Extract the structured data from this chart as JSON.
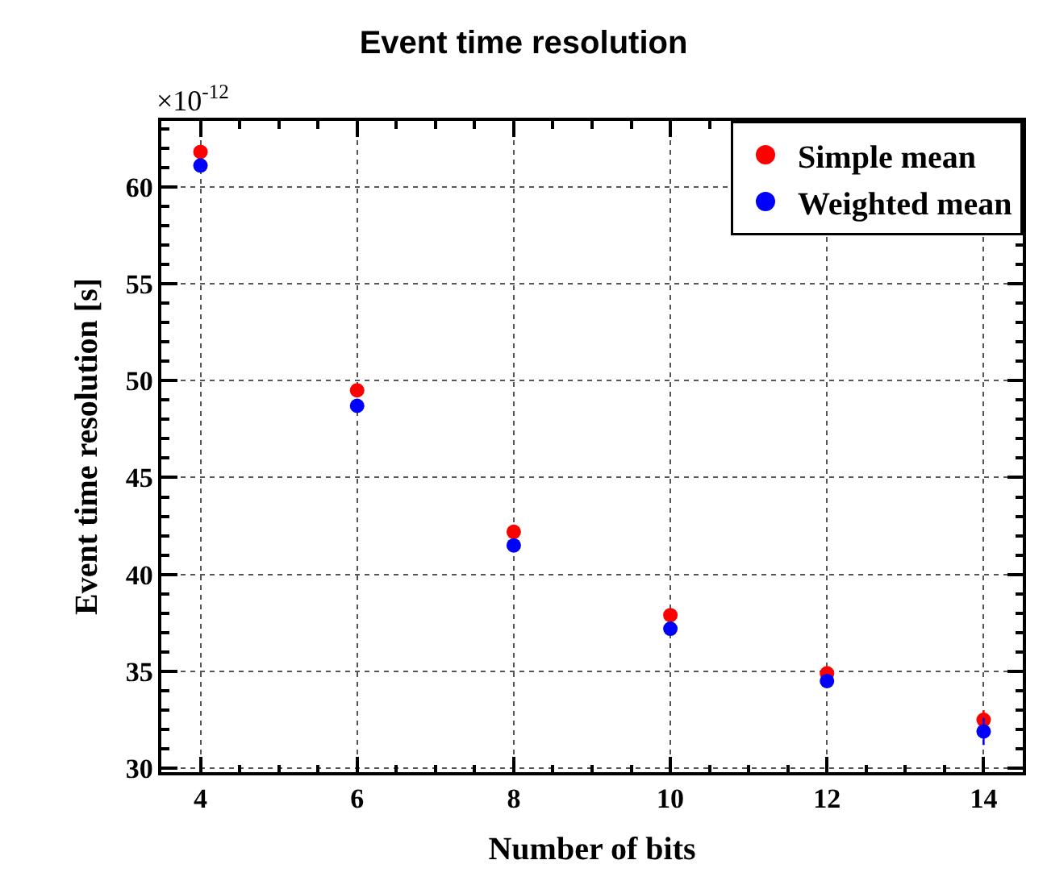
{
  "chart_data": {
    "type": "scatter",
    "title": "Event time resolution",
    "xlabel": "Number of bits",
    "ylabel": "Event time resolution [s]",
    "annotations": [
      "×10$^{-12}$"
    ],
    "x": [
      4,
      6,
      8,
      10,
      12,
      14
    ],
    "series": [
      {
        "name": "Simple mean",
        "color": "#ff0000",
        "values": [
          61.8,
          49.5,
          42.2,
          37.9,
          34.9,
          32.5
        ],
        "errors": [
          null,
          null,
          null,
          null,
          null,
          0.5
        ]
      },
      {
        "name": "Weighted mean",
        "color": "#0000ff",
        "values": [
          61.1,
          48.7,
          41.5,
          37.2,
          34.5,
          31.9
        ],
        "errors": [
          null,
          null,
          null,
          null,
          null,
          0.7
        ]
      }
    ],
    "xlim": [
      3.5,
      14.5
    ],
    "ylim": [
      29.8,
      63.4
    ],
    "xticks": [
      4,
      6,
      8,
      10,
      12,
      14
    ],
    "yticks": [
      30,
      35,
      40,
      45,
      50,
      55,
      60
    ],
    "grid": true,
    "legend": "top right",
    "marker": "circle"
  }
}
